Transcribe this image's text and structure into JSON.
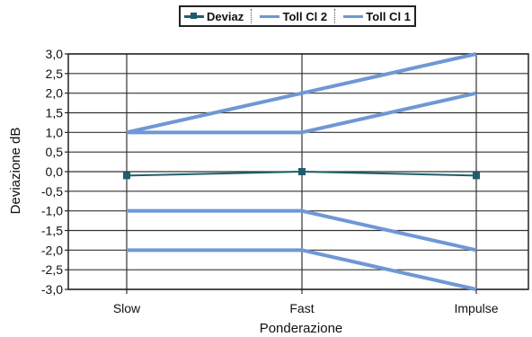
{
  "chart_data": {
    "type": "line",
    "categories": [
      "Slow",
      "Fast",
      "Impulse"
    ],
    "xlabel": "Ponderazione",
    "ylabel": "Deviazione dB",
    "ylim": [
      -3.0,
      3.0
    ],
    "y_ticks": [
      "3,0",
      "2,5",
      "2,0",
      "1,5",
      "1,0",
      "0,5",
      "0,0",
      "-0,5",
      "-1,0",
      "-1,5",
      "-2,0",
      "-2,5",
      "-3,0"
    ],
    "grid": true,
    "legend_position": "top-center",
    "legend": [
      "Deviaz",
      "Toll Cl 2",
      "Toll Cl 1"
    ],
    "series": [
      {
        "name": "Deviaz",
        "color": "#1f5f6b",
        "marker": "square",
        "values": [
          -0.1,
          0.0,
          -0.1
        ]
      },
      {
        "name": "Toll Cl 2",
        "color": "#6f97d4",
        "values": [
          1.0,
          2.0,
          3.0
        ]
      },
      {
        "name": "Toll Cl 2",
        "color": "#6f97d4",
        "values": [
          -2.0,
          -2.0,
          -3.0
        ]
      },
      {
        "name": "Toll Cl 1",
        "color": "#6f97d4",
        "values": [
          1.0,
          1.0,
          2.0
        ]
      },
      {
        "name": "Toll Cl 1",
        "color": "#6f97d4",
        "values": [
          -1.0,
          -1.0,
          -2.0
        ]
      }
    ]
  }
}
